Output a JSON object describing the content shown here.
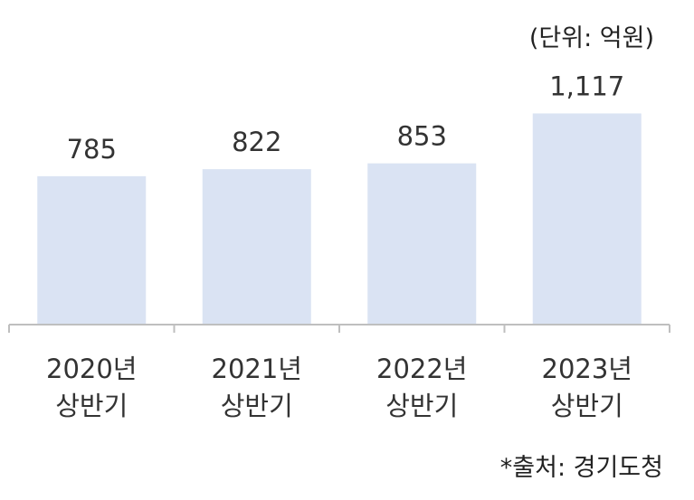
{
  "unit_label": "(단위: 억원)",
  "source_label": "*출처: 경기도청",
  "chart_data": {
    "type": "bar",
    "title": "",
    "xlabel": "",
    "ylabel": "",
    "categories": [
      [
        "2020년",
        "상반기"
      ],
      [
        "2021년",
        "상반기"
      ],
      [
        "2022년",
        "상반기"
      ],
      [
        "2023년",
        "상반기"
      ]
    ],
    "values": [
      785,
      822,
      853,
      1117
    ],
    "value_labels": [
      "785",
      "822",
      "853",
      "1,117"
    ],
    "ylim": [
      0,
      1167
    ],
    "bar_color": "#dae3f3",
    "axis_color": "#bfbfbf",
    "text_color": "#333333",
    "grid": false,
    "legend": "none"
  }
}
